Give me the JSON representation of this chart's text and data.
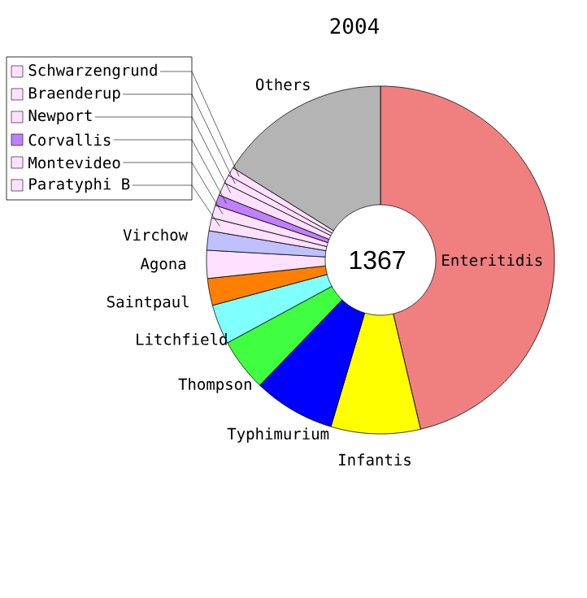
{
  "chart_data": {
    "type": "donut",
    "title": "2004",
    "categories": [
      "Enteritidis",
      "Infantis",
      "Typhimurium",
      "Thompson",
      "Litchfield",
      "Saintpaul",
      "Agona",
      "Virchow",
      "Paratyphi B",
      "Montevideo",
      "Corvallis",
      "Newport",
      "Braenderup",
      "Schwarzengrund",
      "Others"
    ],
    "values": [
      46.3,
      8.3,
      7.6,
      4.9,
      3.7,
      2.5,
      2.6,
      1.8,
      1.2,
      1.2,
      1.0,
      1.2,
      0.8,
      0.8,
      16.1
    ],
    "colors": [
      "#f08080",
      "#ffff00",
      "#0000ff",
      "#40ff40",
      "#80ffff",
      "#ff8000",
      "#ffe0ff",
      "#c0c0ff",
      "#ffe0ff",
      "#ffe0ff",
      "#c080ff",
      "#ffe0ff",
      "#ffe0ff",
      "#ffe0ff",
      "#b4b4b4"
    ],
    "annotations": [
      "1367"
    ],
    "legend": "top left"
  }
}
